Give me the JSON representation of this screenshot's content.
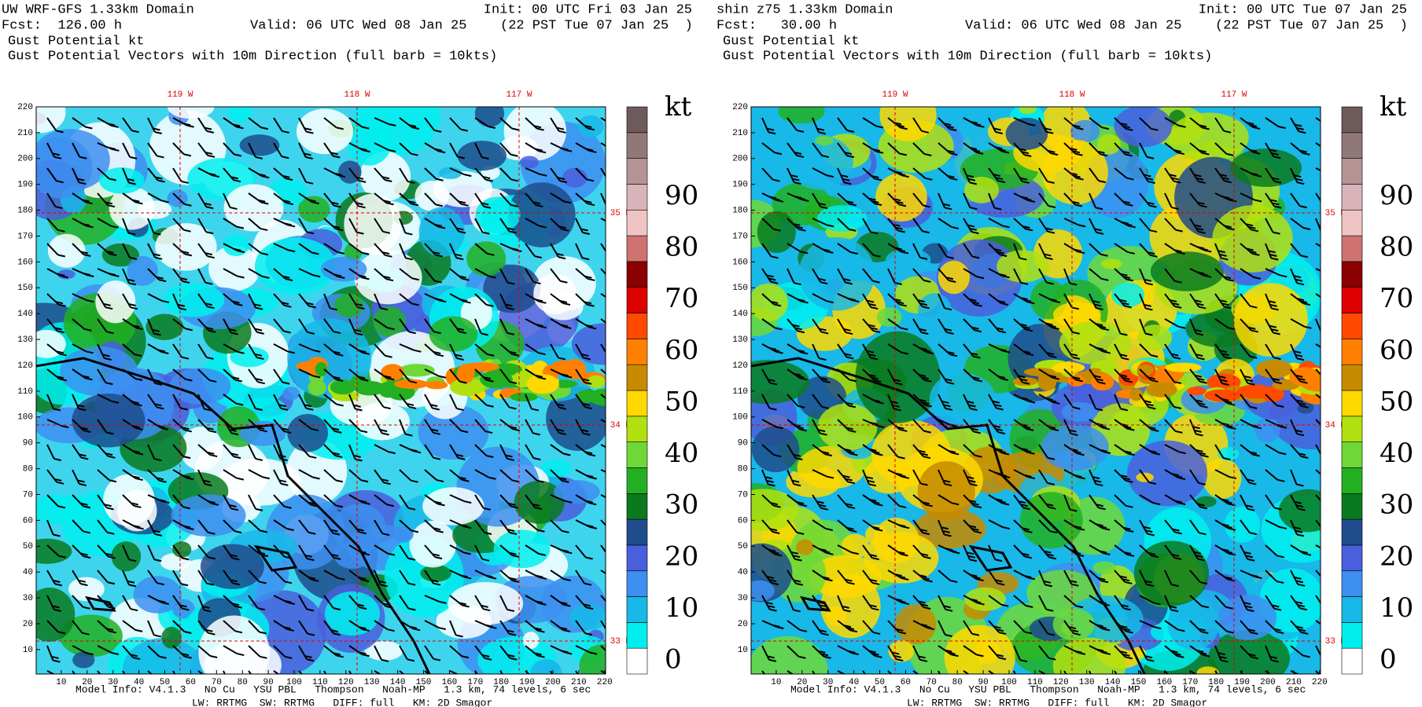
{
  "panels": [
    {
      "title": "UW WRF-GFS 1.33km Domain",
      "init": "Init: 00 UTC Fri 03 Jan 25",
      "fcst": "Fcst:  126.00 h",
      "valid": "Valid: 06 UTC Wed 08 Jan 25",
      "local": "(22 PST Tue 07 Jan 25  )",
      "field": "Gust Potential kt",
      "vectors": "Gust Potential Vectors with 10m Direction (full barb = 10kts)"
    },
    {
      "title": "shin z75 1.33km Domain",
      "init": "Init: 00 UTC Tue 07 Jan 25",
      "fcst": "Fcst:   30.00 h",
      "valid": "Valid: 06 UTC Wed 08 Jan 25",
      "local": "(22 PST Tue 07 Jan 25  )",
      "field": "Gust Potential kt",
      "vectors": "Gust Potential Vectors with 10m Direction (full barb = 10kts)"
    }
  ],
  "yticks": [
    10,
    20,
    30,
    40,
    50,
    60,
    70,
    80,
    90,
    100,
    110,
    120,
    130,
    140,
    150,
    160,
    170,
    180,
    190,
    200,
    210,
    220
  ],
  "xticks": [
    10,
    20,
    30,
    40,
    50,
    60,
    70,
    80,
    90,
    100,
    110,
    120,
    130,
    140,
    150,
    160,
    170,
    180,
    190,
    200,
    210,
    220
  ],
  "longitudes": [
    "119 W",
    "118 W",
    "117 W"
  ],
  "latitudes": [
    "35 N",
    "34 N",
    "33 N"
  ],
  "colorbar": {
    "unit": "kt",
    "labels": [
      "0",
      "10",
      "20",
      "30",
      "40",
      "50",
      "60",
      "70",
      "80",
      "90"
    ],
    "colors": [
      "#ffffff",
      "#00eeee",
      "#18b8e8",
      "#3d8ff0",
      "#4a5fdc",
      "#1f4c8c",
      "#0b7a1e",
      "#22b022",
      "#6ed838",
      "#b0e010",
      "#ffd800",
      "#c88a00",
      "#ff8000",
      "#ff4a00",
      "#dd0000",
      "#8b0000",
      "#cf7272",
      "#f0c4c4",
      "#d8b4ba",
      "#b49494",
      "#907878",
      "#6e5a5a"
    ]
  },
  "footer": {
    "line1": "Model Info: V4.1.3   No Cu   YSU PBL   Thompson   Noah-MP   1.3 km, 74 levels, 6 sec",
    "line2": "LW: RRTMG  SW: RRTMG   DIFF: full   KM: 2D Smagor"
  }
}
